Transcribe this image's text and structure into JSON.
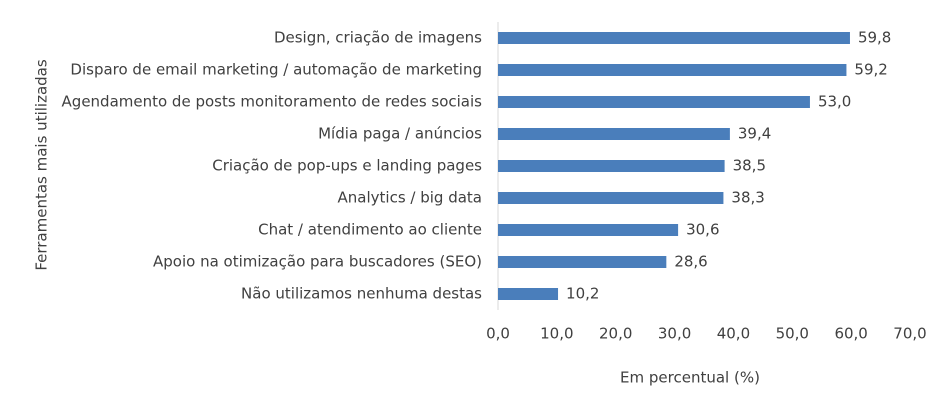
{
  "chart_data": {
    "type": "hbar",
    "categories": [
      "Design, criação de imagens",
      "Disparo de email marketing / automação de marketing",
      "Agendamento de posts monitoramento de redes sociais",
      "Mídia paga / anúncios",
      "Criação de pop-ups e landing pages",
      "Analytics / big data",
      "Chat / atendimento ao cliente",
      "Apoio na otimização para buscadores (SEO)",
      "Não utilizamos nenhuma destas"
    ],
    "values": [
      59.8,
      59.2,
      53.0,
      39.4,
      38.5,
      38.3,
      30.6,
      28.6,
      10.2
    ],
    "value_labels": [
      "59,8",
      "59,2",
      "53,0",
      "39,4",
      "38,5",
      "38,3",
      "30,6",
      "28,6",
      "10,2"
    ],
    "color": "#4a7ebb",
    "xlabel": "Em percentual (%)",
    "ylabel": "Ferramentas mais utilizadas",
    "xlim": [
      0,
      70
    ],
    "xticks": [
      {
        "value": 0,
        "label": "0,0"
      },
      {
        "value": 10,
        "label": "10,0"
      },
      {
        "value": 20,
        "label": "20,0"
      },
      {
        "value": 30,
        "label": "30,0"
      },
      {
        "value": 40,
        "label": "40,0"
      },
      {
        "value": 50,
        "label": "50,0"
      },
      {
        "value": 60,
        "label": "60,0"
      },
      {
        "value": 70,
        "label": "70,0"
      }
    ],
    "grid": false
  }
}
